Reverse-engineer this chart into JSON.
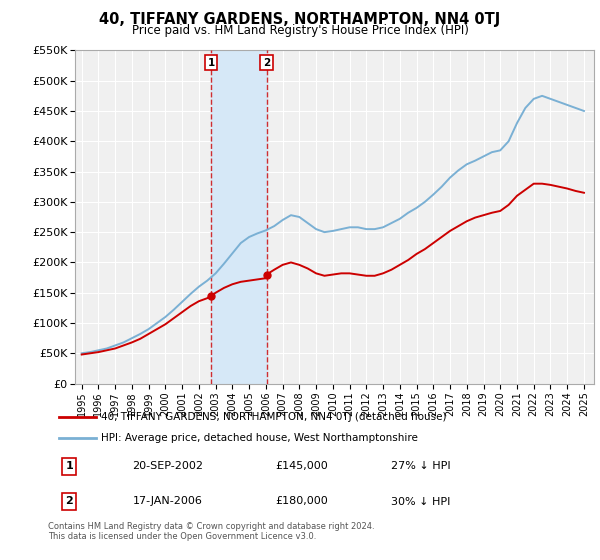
{
  "title": "40, TIFFANY GARDENS, NORTHAMPTON, NN4 0TJ",
  "subtitle": "Price paid vs. HM Land Registry's House Price Index (HPI)",
  "legend_line1": "40, TIFFANY GARDENS, NORTHAMPTON, NN4 0TJ (detached house)",
  "legend_line2": "HPI: Average price, detached house, West Northamptonshire",
  "footer": "Contains HM Land Registry data © Crown copyright and database right 2024.\nThis data is licensed under the Open Government Licence v3.0.",
  "transactions": [
    {
      "num": 1,
      "date": "20-SEP-2002",
      "price": "£145,000",
      "hpi": "27% ↓ HPI",
      "year": 2002.72
    },
    {
      "num": 2,
      "date": "17-JAN-2006",
      "price": "£180,000",
      "hpi": "30% ↓ HPI",
      "year": 2006.04
    }
  ],
  "transaction_prices": [
    145000,
    180000
  ],
  "ylim": [
    0,
    550000
  ],
  "red_color": "#cc0000",
  "blue_color": "#7ab0d4",
  "shade_color": "#d6e8f7",
  "background_color": "#f0f0f0",
  "grid_color": "#ffffff"
}
